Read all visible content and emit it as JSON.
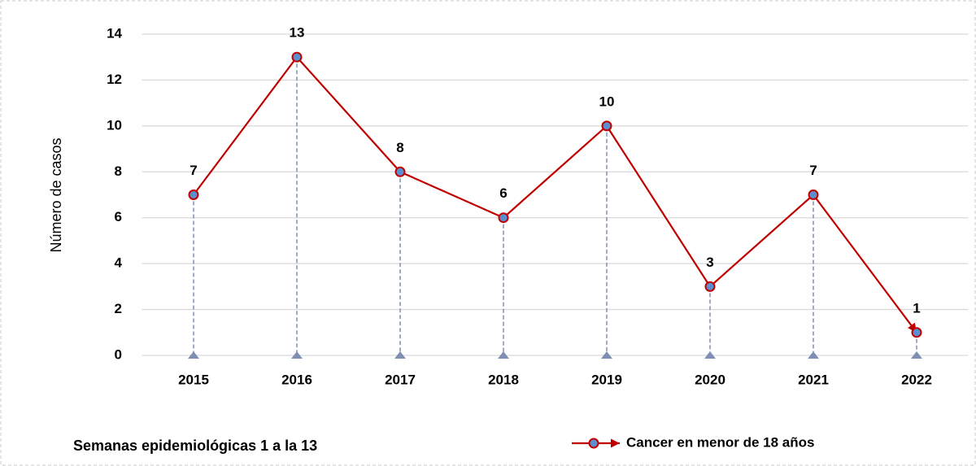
{
  "chart_data": {
    "type": "line",
    "categories": [
      "2015",
      "2016",
      "2017",
      "2018",
      "2019",
      "2020",
      "2021",
      "2022"
    ],
    "series": [
      {
        "name": "Cancer en menor de 18 años",
        "color": "#c00000",
        "values": [
          7,
          13,
          8,
          6,
          10,
          3,
          7,
          1
        ]
      }
    ],
    "y_label": "Número de casos",
    "annotation": "Semanas epidemiológicas 1 a la 13",
    "ylim": [
      0,
      14
    ],
    "yticks": [
      0,
      2,
      4,
      6,
      8,
      10,
      12,
      14
    ],
    "grid": true,
    "marker_color": "#5b8fd0",
    "drop_line_color": "#7f8fb3"
  }
}
